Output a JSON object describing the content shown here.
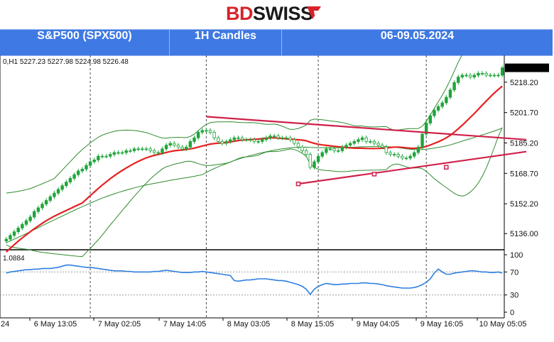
{
  "brand": {
    "part1": "BD",
    "part2": "SWISS"
  },
  "header": {
    "instrument": "S&P500 (SPX500)",
    "timeframe": "1H Candles",
    "dates": "06-09.05.2024"
  },
  "chart_data": {
    "type": "candlestick",
    "ohlc_label": "0,H1  5227.23 5227.98 5224.98 5226.48",
    "ylim": [
      5128,
      5232
    ],
    "yticks": [
      5218.2,
      5201.7,
      5185.2,
      5168.7,
      5152.2,
      5136.0
    ],
    "x_tick_labels": [
      "6 May 13:05",
      "7 May 02:05",
      "7 May 14:05",
      "8 May 03:05",
      "8 May 15:05",
      "9 May 04:05",
      "9 May 16:05",
      "10 May 05:05"
    ],
    "x_edge_label": "24",
    "closes": [
      5133,
      5135,
      5137,
      5139,
      5141,
      5143,
      5145,
      5148,
      5150,
      5152,
      5154,
      5156,
      5158,
      5160,
      5162,
      5164,
      5166,
      5168,
      5170,
      5171,
      5173,
      5175,
      5176,
      5178,
      5178,
      5178,
      5179,
      5180,
      5180,
      5180,
      5181,
      5181,
      5182,
      5182,
      5182,
      5182,
      5181,
      5180,
      5180,
      5182,
      5184,
      5185,
      5184,
      5183,
      5182,
      5183,
      5186,
      5188,
      5191,
      5192,
      5192,
      5191,
      5188,
      5186,
      5185,
      5186,
      5187,
      5188,
      5188,
      5187,
      5187,
      5187,
      5186,
      5186,
      5187,
      5188,
      5189,
      5189,
      5188,
      5188,
      5188,
      5187,
      5185,
      5183,
      5181,
      5179,
      5172,
      5175,
      5178,
      5180,
      5182,
      5182,
      5181,
      5181,
      5183,
      5184,
      5185,
      5186,
      5187,
      5188,
      5186,
      5186,
      5185,
      5184,
      5183,
      5180,
      5179,
      5179,
      5178,
      5177,
      5177,
      5178,
      5180,
      5183,
      5190,
      5196,
      5200,
      5203,
      5205,
      5207,
      5210,
      5214,
      5218,
      5221,
      5222,
      5222,
      5221,
      5222,
      5223,
      5223,
      5222,
      5222,
      5222,
      5222,
      5226
    ],
    "bollinger_upper_start": 5158,
    "bollinger_middle_start": 5126,
    "trendlines": [
      {
        "from": [
          50,
          5199.5
        ],
        "to": [
          130,
          5187
        ]
      },
      {
        "from": [
          73,
          5163
        ],
        "to": [
          130,
          5180.5
        ]
      }
    ],
    "indicator": {
      "label": "1.0884",
      "ylim": [
        0,
        100
      ],
      "yticks": [
        100,
        70,
        30,
        0
      ],
      "values": [
        68,
        70,
        71,
        72,
        73,
        74,
        74,
        75,
        75,
        76,
        76,
        76,
        77,
        78,
        80,
        82,
        82,
        81,
        80,
        79,
        78,
        78,
        77,
        76,
        75,
        74,
        73,
        72,
        72,
        72,
        71,
        71,
        70,
        70,
        70,
        70,
        70,
        71,
        71,
        72,
        73,
        72,
        71,
        70,
        69,
        69,
        69,
        70,
        70,
        71,
        70,
        69,
        68,
        67,
        66,
        65,
        64,
        55,
        54,
        55,
        56,
        56,
        57,
        58,
        58,
        58,
        57,
        56,
        55,
        55,
        54,
        52,
        50,
        48,
        45,
        40,
        31,
        40,
        45,
        48,
        50,
        49,
        48,
        48,
        49,
        49,
        50,
        50,
        50,
        51,
        51,
        50,
        50,
        49,
        48,
        46,
        45,
        44,
        43,
        42,
        42,
        42,
        43,
        45,
        48,
        52,
        58,
        68,
        75,
        70,
        66,
        66,
        68,
        69,
        70,
        71,
        72,
        72,
        71,
        70,
        70,
        69,
        69,
        70,
        68
      ]
    },
    "colors": {
      "bull": "#1ea53a",
      "bear": "#1ea53a",
      "ma": "#e62020",
      "bollinger": "#2e8b2e",
      "trendline": "#d0204a",
      "indicator": "#2f7fe0",
      "grid": "#8a8a8a"
    }
  }
}
